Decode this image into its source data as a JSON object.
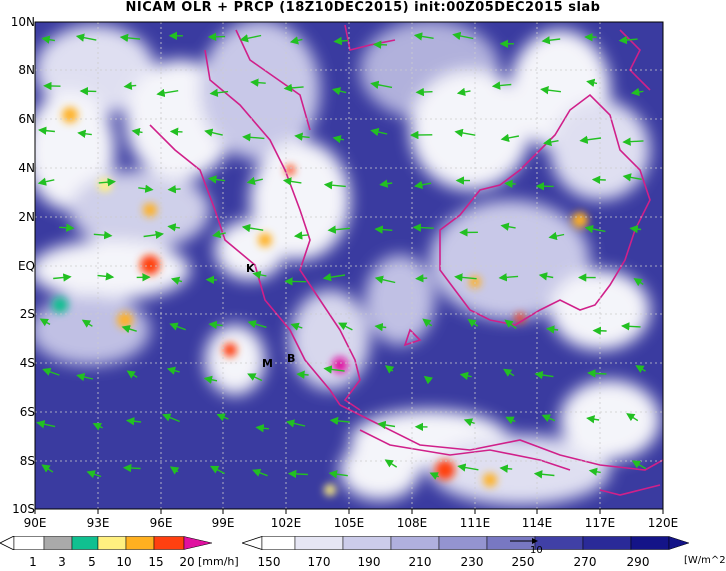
{
  "title": "NICAM OLR + PRCP (18Z10DEC2015) init:00Z05DEC2015 slab",
  "map": {
    "lat_labels": [
      "10N",
      "8N",
      "6N",
      "4N",
      "2N",
      "EQ",
      "2S",
      "4S",
      "6S",
      "8S",
      "10S"
    ],
    "lon_labels": [
      "90E",
      "93E",
      "96E",
      "99E",
      "102E",
      "105E",
      "108E",
      "111E",
      "114E",
      "117E",
      "120E"
    ],
    "place_labels": [
      "K",
      "M",
      "B"
    ],
    "colors": {
      "ocean": "#3a3ba0",
      "coast": "#d0208a",
      "wind": "#22c022",
      "grid": "#cccccc"
    }
  },
  "prcp_scale": {
    "levels": [
      "1",
      "3",
      "5",
      "10",
      "15",
      "20"
    ],
    "unit": "[mm/h]",
    "colors": [
      "#ffffff",
      "#aaaaaa",
      "#10c090",
      "#fff080",
      "#ffb020",
      "#ff4010",
      "#e010a0"
    ]
  },
  "olr_scale": {
    "levels": [
      "150",
      "170",
      "190",
      "210",
      "230",
      "250",
      "270",
      "290"
    ],
    "unit": "[W/m^2]",
    "vector_ref": "10",
    "colors": [
      "#ffffff",
      "#e6e6f4",
      "#ccccea",
      "#b0b0de",
      "#9494d0",
      "#7878c2",
      "#5c5cb4",
      "#4040a6",
      "#2a2a98",
      "#141488"
    ]
  }
}
